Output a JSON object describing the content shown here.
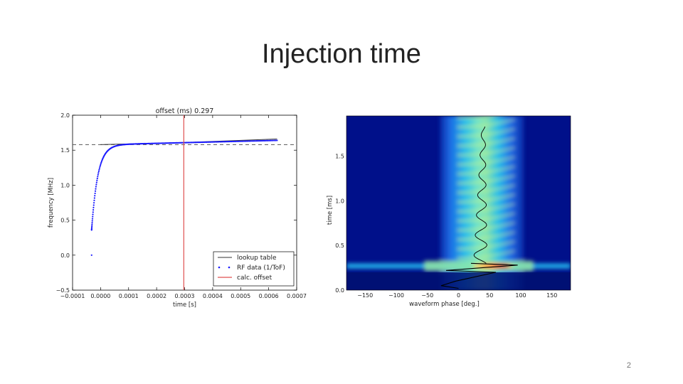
{
  "slide": {
    "title": "Injection time",
    "page_number": "2"
  },
  "chart_data": [
    {
      "type": "scatter",
      "title": "offset (ms) 0.297",
      "xlabel": "time [s]",
      "ylabel": "frequency [MHz]",
      "xlim": [
        -0.0001,
        0.0007
      ],
      "ylim": [
        -0.5,
        2.0
      ],
      "xticks": [
        -0.0001,
        0.0,
        0.0001,
        0.0002,
        0.0003,
        0.0004,
        0.0005,
        0.0006,
        0.0007
      ],
      "xtick_labels": [
        "−0.0001",
        "0.0000",
        "0.0001",
        "0.0002",
        "0.0003",
        "0.0004",
        "0.0005",
        "0.0006",
        "0.0007"
      ],
      "yticks": [
        -0.5,
        0.0,
        0.5,
        1.0,
        1.5,
        2.0
      ],
      "ytick_labels": [
        "−0.5",
        "0.0",
        "0.5",
        "1.0",
        "1.5",
        "2.0"
      ],
      "legend_position": "bottom-right",
      "series": [
        {
          "name": "lookup table",
          "kind": "line",
          "color": "#333333",
          "x": [
            0.0,
            0.0003,
            0.00063
          ],
          "y": [
            1.58,
            1.61,
            1.66
          ]
        },
        {
          "name": "RF data (1/ToF)",
          "kind": "points",
          "color": "#1a1aff",
          "x0": -3.2e-05,
          "x1": 0.00063,
          "y_start": 0.0,
          "y_first": 0.36,
          "y_inf": 1.575,
          "tau": 2.2e-05,
          "drift": 0.065
        },
        {
          "name": "calc. offset",
          "kind": "vline",
          "color": "#e05050",
          "x": 0.000297
        }
      ],
      "hline": {
        "y": 1.58,
        "style": "dashed",
        "color": "#555555"
      }
    },
    {
      "type": "heatmap",
      "xlabel": "waveform phase [deg.]",
      "ylabel": "time [ms]",
      "xlim": [
        -180,
        180
      ],
      "ylim": [
        0.0,
        1.95
      ],
      "xticks": [
        -150,
        -100,
        -50,
        0,
        50,
        100,
        150
      ],
      "xtick_labels": [
        "−150",
        "−100",
        "−50",
        "0",
        "50",
        "100",
        "150"
      ],
      "yticks": [
        0.0,
        0.5,
        1.0,
        1.5
      ],
      "ytick_labels": [
        "0.0",
        "0.5",
        "1.0",
        "1.5"
      ],
      "colormap": "jet",
      "overlay_trace": {
        "color": "#000000",
        "center_phase": 40,
        "start_time": 0.2
      }
    }
  ]
}
